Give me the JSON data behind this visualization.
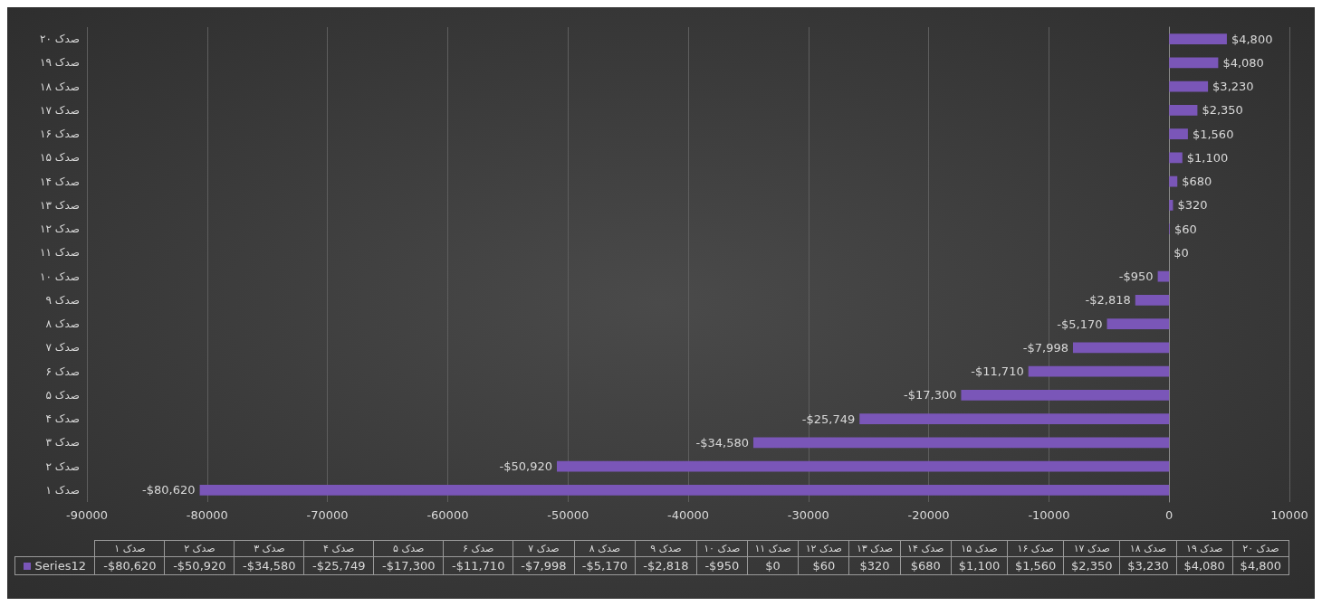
{
  "chart_data": {
    "type": "bar",
    "orientation": "horizontal",
    "categories": [
      "صدک ۲۰",
      "صدک ۱۹",
      "صدک ۱۸",
      "صدک ۱۷",
      "صدک ۱۶",
      "صدک ۱۵",
      "صدک ۱۴",
      "صدک ۱۳",
      "صدک ۱۲",
      "صدک ۱۱",
      "صدک ۱۰",
      "صدک ۹",
      "صدک ۸",
      "صدک ۷",
      "صدک ۶",
      "صدک ۵",
      "صدک ۴",
      "صدک ۳",
      "صدک ۲",
      "صدک ۱"
    ],
    "series": [
      {
        "name": "Series12",
        "color": "#7a56b8",
        "values": [
          4800,
          4080,
          3230,
          2350,
          1560,
          1100,
          680,
          320,
          60,
          0,
          -950,
          -2818,
          -5170,
          -7998,
          -11710,
          -17300,
          -25749,
          -34580,
          -50920,
          -80620
        ],
        "value_labels": [
          "$4,800",
          "$4,080",
          "$3,230",
          "$2,350",
          "$1,560",
          "$1,100",
          "$680",
          "$320",
          "$60",
          "$0",
          "-$950",
          "-$2,818",
          "-$5,170",
          "-$7,998",
          "-$11,710",
          "-$17,300",
          "-$25,749",
          "-$34,580",
          "-$50,920",
          "-$80,620"
        ]
      }
    ],
    "xlim": [
      -90000,
      10000
    ],
    "xticks": [
      -90000,
      -80000,
      -70000,
      -60000,
      -50000,
      -40000,
      -30000,
      -20000,
      -10000,
      0,
      10000
    ],
    "grid": "x",
    "legend": "bottom"
  }
}
